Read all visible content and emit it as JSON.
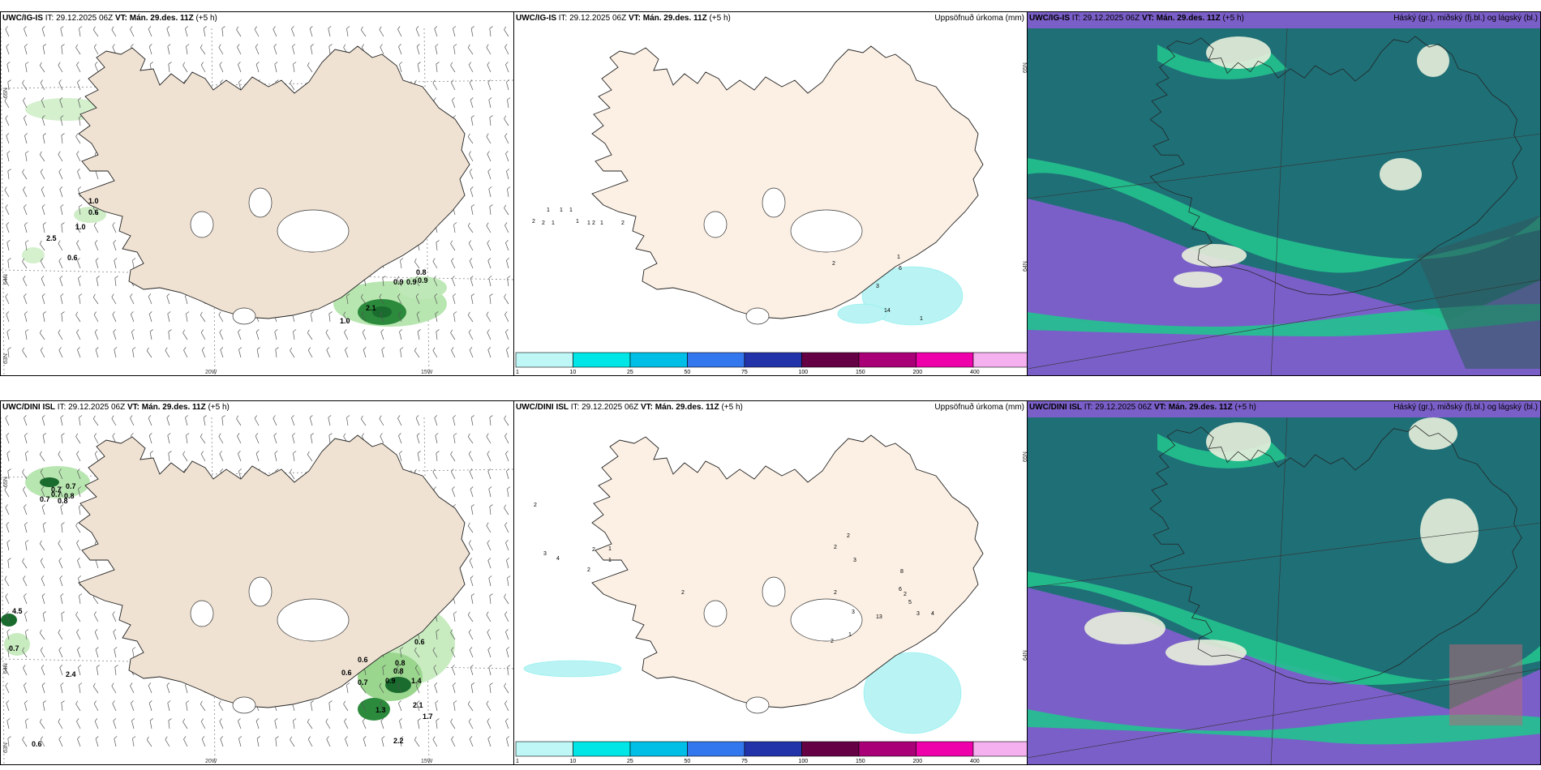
{
  "rows": [
    {
      "id": "igis",
      "panels": {
        "wind": {
          "model": "UWC/IG-IS",
          "it_label": "IT:",
          "it_value": "29.12.2025 06Z",
          "vt_label": "VT:",
          "vt_value": "Mán. 29.des. 11Z",
          "lead": "(+5 h)",
          "labels": [
            "1.0",
            "0.6",
            "1.0",
            "2.5",
            "0.6",
            "0.9",
            "0.9",
            "0.9",
            "0.8",
            "1.0",
            "2.1"
          ],
          "axis": {
            "lat_top": "65N",
            "lat_mid": "64N",
            "lat_bot": "63N",
            "lon_20": "20W",
            "lon_15": "15W"
          }
        },
        "precip": {
          "model": "UWC/IG-IS",
          "it_label": "IT:",
          "it_value": "29.12.2025 06Z",
          "vt_label": "VT:",
          "vt_value": "Mán. 29.des. 11Z",
          "lead": "(+5 h)",
          "title": "Uppsöfnuð úrkoma (mm)",
          "axis": {
            "lat_top": "65N",
            "lat_mid": "64N"
          },
          "numbers": [
            "1",
            "1",
            "1",
            "2",
            "2",
            "1",
            "1",
            "1",
            "1",
            "2",
            "2",
            "2",
            "1",
            "3",
            "6",
            "14",
            "1"
          ]
        },
        "cloud": {
          "model": "UWC/IG-IS",
          "it_label": "IT:",
          "it_value": "29.12.2025 06Z",
          "vt_label": "VT:",
          "vt_value": "Mán. 29.des. 11Z",
          "lead": "(+5 h)",
          "title": "Háský (gr.), miðský (fj.bl.) og lágský (bl.)"
        }
      }
    },
    {
      "id": "dini",
      "panels": {
        "wind": {
          "model": "UWC/DINI ISL",
          "it_label": "IT:",
          "it_value": "29.12.2025 06Z",
          "vt_label": "VT:",
          "vt_value": "Mán. 29.des. 11Z",
          "lead": "(+5 h)",
          "labels": [
            "0.7",
            "0.7",
            "0.8",
            "0.7",
            "0.7",
            "0.8",
            "4.5",
            "0.7",
            "2.4",
            "0.6",
            "0.6",
            "0.8",
            "0.6",
            "0.7",
            "0.9",
            "0.8",
            "1.4",
            "1.3",
            "2.1",
            "1.7",
            "2.2",
            "0.6"
          ],
          "axis": {
            "lat_top": "65N",
            "lat_mid": "64N",
            "lat_bot": "63N",
            "lon_20": "20W",
            "lon_15": "15W"
          }
        },
        "precip": {
          "model": "UWC/DINI ISL",
          "it_label": "IT:",
          "it_value": "29.12.2025 06Z",
          "vt_label": "VT:",
          "vt_value": "Mán. 29.des. 11Z",
          "lead": "(+5 h)",
          "title": "Uppsöfnuð úrkoma (mm)",
          "axis": {
            "lat_top": "65N",
            "lat_mid": "64N"
          },
          "numbers": [
            "2",
            "3",
            "4",
            "2",
            "2",
            "1",
            "1",
            "2",
            "2",
            "2",
            "3",
            "2",
            "3",
            "8",
            "6",
            "5",
            "3",
            "4",
            "13",
            "1",
            "2",
            "2"
          ]
        },
        "cloud": {
          "model": "UWC/DINI ISL",
          "it_label": "IT:",
          "it_value": "29.12.2025 06Z",
          "vt_label": "VT:",
          "vt_value": "Mán. 29.des. 11Z",
          "lead": "(+5 h)",
          "title": "Háský (gr.), miðský (fj.bl.) og lágský (bl.)"
        }
      }
    }
  ],
  "colorbar": {
    "labels": [
      "1",
      "10",
      "25",
      "50",
      "75",
      "100",
      "150",
      "200",
      "400"
    ],
    "colors": [
      "#bff7f7",
      "#00e6e6",
      "#00bfe6",
      "#3377ee",
      "#2233aa",
      "#660044",
      "#aa0077",
      "#ee00aa",
      "#f5b0f0"
    ]
  },
  "colors": {
    "land": "#efe2d3",
    "land_precip": "#fcf0e4",
    "ocean_cloud": "#7a5fc8",
    "mid_cloud": "#1f6f76",
    "low_cloud": "#22c28e",
    "high_cloud": "#e8f0dc",
    "precip_light": "#b9f3f3",
    "wind_green": "#1a6b2e"
  }
}
